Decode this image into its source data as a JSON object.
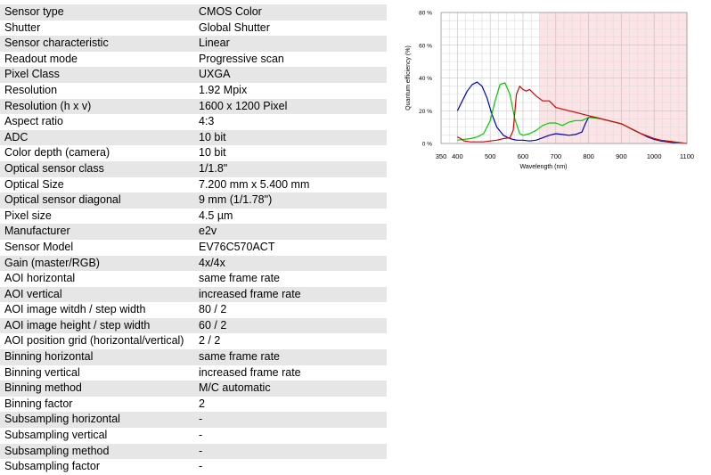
{
  "specs": [
    {
      "label": "Sensor type",
      "value": "CMOS Color"
    },
    {
      "label": "Shutter",
      "value": "Global Shutter"
    },
    {
      "label": "Sensor characteristic",
      "value": "Linear"
    },
    {
      "label": "Readout mode",
      "value": "Progressive scan"
    },
    {
      "label": "Pixel Class",
      "value": "UXGA"
    },
    {
      "label": "Resolution",
      "value": "1.92 Mpix"
    },
    {
      "label": "Resolution (h x v)",
      "value": "1600 x 1200 Pixel"
    },
    {
      "label": "Aspect ratio",
      "value": "4:3"
    },
    {
      "label": "ADC",
      "value": "10 bit"
    },
    {
      "label": "Color depth (camera)",
      "value": "10 bit"
    },
    {
      "label": "Optical sensor class",
      "value": "1/1.8\""
    },
    {
      "label": "Optical Size",
      "value": "7.200 mm x 5.400 mm"
    },
    {
      "label": "Optical sensor diagonal",
      "value": "9 mm (1/1.78\")"
    },
    {
      "label": "Pixel size",
      "value": "4.5 µm"
    },
    {
      "label": "Manufacturer",
      "value": "e2v"
    },
    {
      "label": "Sensor Model",
      "value": "EV76C570ACT"
    },
    {
      "label": "Gain (master/RGB)",
      "value": "4x/4x"
    },
    {
      "label": "AOI horizontal",
      "value": "same frame rate"
    },
    {
      "label": "AOI vertical",
      "value": "increased frame rate"
    },
    {
      "label": "AOI image witdh / step width",
      "value": "80 / 2"
    },
    {
      "label": "AOI image height / step width",
      "value": "60 / 2"
    },
    {
      "label": "AOI position grid (horizontal/vertical)",
      "value": "2 / 2"
    },
    {
      "label": "Binning horizontal",
      "value": "same frame rate"
    },
    {
      "label": "Binning vertical",
      "value": "increased frame rate"
    },
    {
      "label": "Binning method",
      "value": "M/C automatic"
    },
    {
      "label": "Binning factor",
      "value": "2"
    },
    {
      "label": "Subsampling horizontal",
      "value": "-"
    },
    {
      "label": "Subsampling vertical",
      "value": "-"
    },
    {
      "label": "Subsampling method",
      "value": "-"
    },
    {
      "label": "Subsampling factor",
      "value": "-"
    }
  ],
  "chart_data": {
    "type": "line",
    "title": "",
    "xlabel": "Wavelength (nm)",
    "ylabel": "Quantum efficiency (%)",
    "xlim": [
      350,
      1100
    ],
    "ylim": [
      0,
      80
    ],
    "x_ticks": [
      "350",
      "400",
      "500",
      "600",
      "700",
      "800",
      "900",
      "1000",
      "1100"
    ],
    "y_ticks": [
      "0 %",
      "20 %",
      "40 %",
      "60 %",
      "80 %"
    ],
    "grid": true,
    "shaded_region": {
      "x_from": 650,
      "x_to": 1100,
      "color": "#fbe3e6"
    },
    "series": [
      {
        "color": "#0000cc",
        "x": [
          400,
          415,
          430,
          445,
          460,
          475,
          490,
          505,
          520,
          540,
          560,
          580,
          600,
          620,
          640,
          660,
          680,
          700,
          720,
          740,
          760,
          780,
          790,
          800,
          820,
          840,
          860,
          880,
          900,
          920,
          940,
          960,
          980,
          1000,
          1020,
          1040,
          1060,
          1080,
          1100
        ],
        "y": [
          20,
          26,
          32,
          36,
          37.5,
          35,
          28,
          18,
          10,
          5,
          3,
          2,
          2,
          1.5,
          2,
          3.5,
          5,
          6,
          5.5,
          5,
          5.5,
          7,
          12,
          16,
          16,
          15,
          14,
          13,
          12,
          10,
          8,
          6,
          4,
          2.5,
          1.5,
          1,
          0.5,
          0.3,
          0
        ]
      },
      {
        "color": "#00cc00",
        "x": [
          400,
          420,
          440,
          460,
          480,
          500,
          515,
          530,
          545,
          560,
          575,
          590,
          600,
          620,
          640,
          660,
          680,
          700,
          720,
          740,
          760,
          780,
          800,
          820,
          840,
          860,
          880,
          900,
          920,
          940,
          960,
          980,
          1000,
          1020,
          1040,
          1060,
          1080,
          1100
        ],
        "y": [
          2,
          2.5,
          3,
          4,
          6,
          14,
          26,
          36,
          37,
          30,
          15,
          6,
          5,
          6,
          8,
          11,
          12.5,
          12.5,
          11,
          13,
          14,
          14,
          16,
          15.5,
          15,
          14,
          13,
          12,
          10,
          8,
          6,
          4.5,
          3,
          2,
          1.5,
          1,
          0.5,
          0
        ]
      },
      {
        "color": "#dd0000",
        "x": [
          400,
          410,
          420,
          440,
          460,
          480,
          500,
          520,
          540,
          560,
          570,
          580,
          590,
          600,
          610,
          620,
          640,
          660,
          680,
          700,
          720,
          740,
          760,
          780,
          800,
          820,
          840,
          860,
          880,
          900,
          920,
          940,
          960,
          980,
          1000,
          1020,
          1040,
          1060,
          1080,
          1100
        ],
        "y": [
          4,
          3,
          1.5,
          1,
          1,
          1,
          1.5,
          2,
          3,
          3.5,
          8,
          30,
          35,
          33,
          32,
          33,
          29,
          26,
          26,
          22,
          21,
          20,
          19,
          18,
          17,
          16,
          15,
          14,
          13,
          12,
          10,
          8,
          6,
          4.5,
          3,
          2,
          1.5,
          1,
          0.5,
          0
        ]
      }
    ]
  }
}
